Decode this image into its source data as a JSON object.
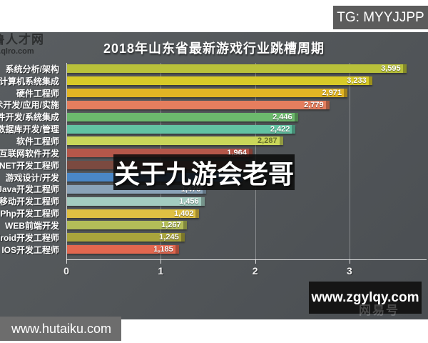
{
  "overlays": {
    "tg_badge": "TG: MYYJJPP",
    "center_text": "关于九游会老哥",
    "site_badge": "www.zgylqy.com",
    "bottom_badge": "www.hutaiku.com",
    "corner_watermark": "网易号",
    "logo_line1": "鲁人才网",
    "logo_line2": "w.qlro.com"
  },
  "chart_data": {
    "type": "bar",
    "orientation": "horizontal",
    "title": "2018年山东省最新游戏行业跳槽周期",
    "xlim": [
      0,
      3.83
    ],
    "x_ticks": [
      "0",
      "1",
      "2",
      "3"
    ],
    "grid": "vertical gridlines at ticks, dark slate background",
    "rows": [
      {
        "label": "系统分析/架构",
        "value": 3595,
        "value_label": "3,595",
        "color": "#b9c13a"
      },
      {
        "label": "计算机系统集成",
        "value": 3233,
        "value_label": "3,233",
        "color": "#d8ca28"
      },
      {
        "label": "硬件工程师",
        "value": 2971,
        "value_label": "2,971",
        "color": "#e2b524"
      },
      {
        "label": "术开发/应用/实施",
        "value": 2779,
        "value_label": "2,779",
        "color": "#e57e5e"
      },
      {
        "label": "件开发/系统集成",
        "value": 2446,
        "value_label": "2,446",
        "color": "#6cb96d"
      },
      {
        "label": "数据库开发/管理",
        "value": 2422,
        "value_label": "2,422",
        "color": "#62c2a2"
      },
      {
        "label": "软件工程师",
        "value": 2287,
        "value_label": "2,287",
        "color": "#c9d65a",
        "faint": true
      },
      {
        "label": "互联网软件开发",
        "value": 1964,
        "value_label": "1,964",
        "color": "#b5574a"
      },
      {
        "label": ".NET开发工程师",
        "value": 1930,
        "value_label": "",
        "color": "#7b4a40"
      },
      {
        "label": "游戏设计/开发",
        "value": 1860,
        "value_label": "",
        "color": "#4a87c6"
      },
      {
        "label": "Java开发工程师",
        "value": 1476,
        "value_label": "1,476",
        "color": "#8aa3b8"
      },
      {
        "label": "移动开发工程师",
        "value": 1456,
        "value_label": "1,456",
        "color": "#a3ccc0"
      },
      {
        "label": "Php开发工程师",
        "value": 1402,
        "value_label": "1,402",
        "color": "#dfc043"
      },
      {
        "label": "WEB前端开发",
        "value": 1267,
        "value_label": "1,267",
        "color": "#b3bd58"
      },
      {
        "label": "Android开发工程师",
        "value": 1245,
        "value_label": "1,245",
        "color": "#a9a43c"
      },
      {
        "label": "IOS开发工程师",
        "value": 1185,
        "value_label": "1,185",
        "color": "#e2674f"
      }
    ]
  }
}
